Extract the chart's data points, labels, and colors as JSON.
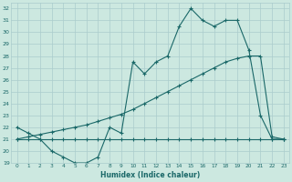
{
  "title": "",
  "xlabel": "Humidex (Indice chaleur)",
  "bg_color": "#cce8e0",
  "grid_color": "#aacccc",
  "line_color": "#1a6868",
  "xlim": [
    -0.5,
    23.5
  ],
  "ylim": [
    19,
    32.5
  ],
  "yticks": [
    19,
    20,
    21,
    22,
    23,
    24,
    25,
    26,
    27,
    28,
    29,
    30,
    31,
    32
  ],
  "xticks": [
    0,
    1,
    2,
    3,
    4,
    5,
    6,
    7,
    8,
    9,
    10,
    11,
    12,
    13,
    14,
    15,
    16,
    17,
    18,
    19,
    20,
    21,
    22,
    23
  ],
  "line_min_y": [
    21,
    21,
    21,
    21,
    21,
    21,
    21,
    21,
    21,
    21,
    21,
    21,
    21,
    21,
    21,
    21,
    21,
    21,
    21,
    21,
    21,
    21,
    21,
    21
  ],
  "line_trend_y": [
    21,
    21.2,
    21.4,
    21.6,
    21.8,
    22.0,
    22.2,
    22.5,
    22.8,
    23.1,
    23.5,
    24.0,
    24.5,
    25.0,
    25.5,
    26.0,
    26.5,
    27.0,
    27.5,
    27.8,
    28.0,
    28.0,
    21.2,
    21
  ],
  "line_data_y": [
    22,
    21.5,
    21,
    20,
    19.5,
    19,
    19,
    19.5,
    22,
    21.5,
    27.5,
    26.5,
    27.5,
    28,
    30.5,
    32,
    31,
    30.5,
    31,
    31,
    28.5,
    23,
    21,
    21
  ]
}
